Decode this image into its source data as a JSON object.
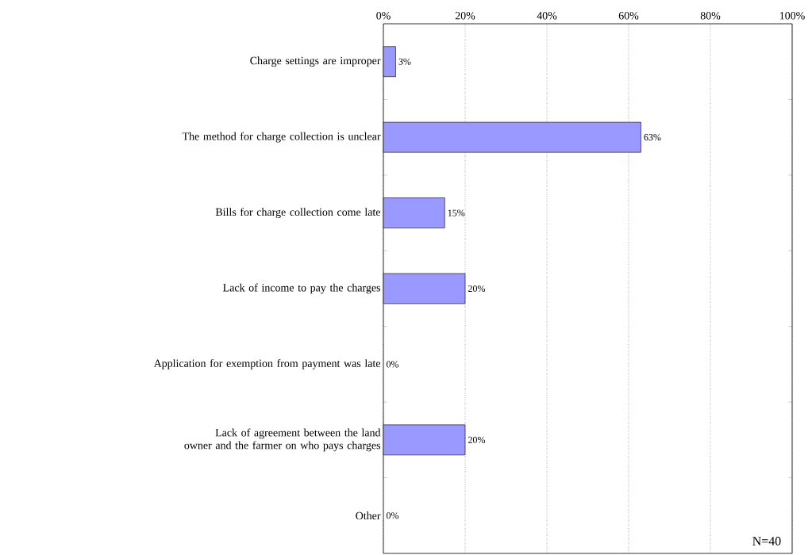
{
  "chart_data": {
    "type": "bar",
    "orientation": "horizontal",
    "categories": [
      "Charge settings are improper",
      "The method for charge collection is unclear",
      "Bills for charge collection come late",
      "Lack of income to pay the charges",
      "Application for exemption from payment was late",
      "Lack of agreement between the land owner and the farmer on who pays charges",
      "Other"
    ],
    "values": [
      3,
      63,
      15,
      20,
      0,
      20,
      0
    ],
    "value_labels": [
      "3%",
      "63%",
      "15%",
      "20%",
      "0%",
      "20%",
      "0%"
    ],
    "color": "#9999ff",
    "xlim": [
      0,
      100
    ],
    "xticks": [
      {
        "value": 0,
        "label": "0%"
      },
      {
        "value": 20,
        "label": "20%"
      },
      {
        "value": 40,
        "label": "40%"
      },
      {
        "value": 60,
        "label": "60%"
      },
      {
        "value": 80,
        "label": "80%"
      },
      {
        "value": 100,
        "label": "100%"
      }
    ],
    "grid": "x",
    "annotations": [
      "N=40"
    ]
  }
}
